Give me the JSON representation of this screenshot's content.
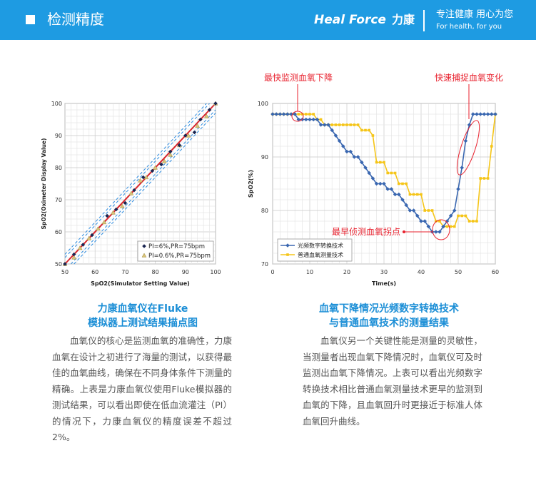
{
  "header": {
    "title": "检测精度",
    "brand": "Heal Force",
    "brand_cn": "力康",
    "slogan": "专注健康 用心为您",
    "slogan_en": "For health, for you"
  },
  "colors": {
    "header_bg": "#1e9be2",
    "caption": "#1b8ed6",
    "callout": "#e8212e",
    "series_blue": "#3a67b0",
    "series_yellow": "#f5c518",
    "identity_line": "#d8262e",
    "band_line": "#2f8de0"
  },
  "chart_data": [
    {
      "type": "scatter",
      "title": "",
      "xlabel": "SpO2(Simulator Setting Value)",
      "ylabel": "SpO2(Oximeter Display Value)",
      "xlim": [
        50,
        100
      ],
      "ylim": [
        50,
        100
      ],
      "xticks": [
        "50",
        "60",
        "70",
        "80",
        "90",
        "100"
      ],
      "yticks": [
        "50",
        "60",
        "70",
        "80",
        "90",
        "100"
      ],
      "grid": true,
      "legend_position": "bottom-right",
      "series": [
        {
          "name": "PI=6%,PR=75bpm",
          "marker": "diamond",
          "x": [
            50,
            53,
            56,
            59,
            64,
            67,
            70,
            73,
            76,
            79,
            82,
            85,
            88,
            90,
            93,
            95,
            98,
            100
          ],
          "y": [
            50,
            53,
            56,
            59,
            65,
            67,
            69,
            73,
            77,
            79,
            81,
            85,
            87,
            90,
            91,
            95,
            98,
            100
          ]
        },
        {
          "name": "PI=0.6%,PR=75bpm",
          "marker": "triangle",
          "x": [
            50,
            53,
            55,
            58,
            61,
            63,
            66,
            69,
            72,
            75,
            77,
            80,
            83,
            85,
            88,
            91,
            94,
            97,
            100
          ],
          "y": [
            50,
            52,
            55,
            58,
            61,
            63,
            66,
            68,
            72,
            76,
            77,
            80,
            82,
            84,
            87,
            90,
            93,
            96,
            100
          ]
        }
      ],
      "reference_lines": {
        "identity": "y=x",
        "bands": [
          "y=x+2",
          "y=x-2",
          "y=x+3",
          "y=x-3"
        ]
      }
    },
    {
      "type": "line",
      "title": "",
      "xlabel": "Time(s)",
      "ylabel": "SpO2(%)",
      "xlim": [
        0,
        60
      ],
      "ylim": [
        70,
        100
      ],
      "xticks": [
        "0",
        "10",
        "20",
        "30",
        "40",
        "50",
        "60"
      ],
      "yticks": [
        "70",
        "80",
        "90",
        "100"
      ],
      "grid": true,
      "legend_position": "bottom-left",
      "series": [
        {
          "name": "光频数字转换技术",
          "marker": "diamond",
          "x": [
            0,
            1,
            2,
            3,
            4,
            5,
            6,
            7,
            8,
            9,
            10,
            11,
            12,
            13,
            14,
            15,
            16,
            17,
            18,
            19,
            20,
            21,
            22,
            23,
            24,
            25,
            26,
            27,
            28,
            29,
            30,
            31,
            32,
            33,
            34,
            35,
            36,
            37,
            38,
            39,
            40,
            41,
            42,
            43,
            44,
            45,
            46,
            47,
            48,
            49,
            50,
            51,
            52,
            53,
            54,
            55,
            56,
            57,
            58,
            59,
            60
          ],
          "y": [
            98,
            98,
            98,
            98,
            98,
            98,
            98,
            97,
            97,
            97,
            97,
            97,
            97,
            96,
            96,
            96,
            95,
            94,
            93,
            92,
            91,
            91,
            90,
            90,
            89,
            88,
            87,
            86,
            85,
            85,
            85,
            84,
            84,
            83,
            83,
            82,
            81,
            80,
            80,
            79,
            78,
            78,
            77,
            76,
            76,
            76,
            77,
            78,
            79,
            80,
            84,
            88,
            93,
            96,
            98,
            98,
            98,
            98,
            98,
            98,
            98
          ]
        },
        {
          "name": "普通血氧测量技术",
          "marker": "square",
          "x": [
            0,
            1,
            2,
            3,
            4,
            5,
            6,
            7,
            8,
            9,
            10,
            11,
            12,
            13,
            14,
            15,
            16,
            17,
            18,
            19,
            20,
            21,
            22,
            23,
            24,
            25,
            26,
            27,
            28,
            29,
            30,
            31,
            32,
            33,
            34,
            35,
            36,
            37,
            38,
            39,
            40,
            41,
            42,
            43,
            44,
            45,
            46,
            47,
            48,
            49,
            50,
            51,
            52,
            53,
            54,
            55,
            56,
            57,
            58,
            59,
            60
          ],
          "y": [
            98,
            98,
            98,
            98,
            98,
            98,
            98,
            98,
            98,
            98,
            98,
            98,
            97,
            97,
            96,
            96,
            96,
            96,
            96,
            96,
            96,
            96,
            96,
            96,
            95,
            95,
            95,
            94,
            89,
            89,
            89,
            87,
            87,
            87,
            85,
            85,
            85,
            83,
            83,
            83,
            83,
            80,
            80,
            80,
            78,
            78,
            77,
            77,
            77,
            77,
            79,
            79,
            79,
            78,
            78,
            78,
            86,
            86,
            86,
            92,
            98
          ]
        }
      ],
      "annotations": [
        "最快监测血氧下降",
        "快速捕捉血氧变化",
        "最早侦测血氧拐点"
      ]
    }
  ],
  "left": {
    "caption_line1": "力康血氧仪在Fluke",
    "caption_line2": "模拟器上测试结果描点图",
    "body": "血氧仪的核心是监测血氧的准确性，力康血氧在设计之初进行了海量的测试，以获得最佳的血氧曲线，确保在不同身体条件下测量的精确。上表是力康血氧仪使用Fluke模拟器的测试结果，可以看出即使在低血流灌注（PI）的情况下，力康血氧仪的精度误差不超过2%。"
  },
  "right": {
    "caption_line1": "血氧下降情况光频数字转换技术",
    "caption_line2": "与普通血氧技术的测量结果",
    "body": "血氧仪另一个关键性能是测量的灵敏性，当测量者出现血氧下降情况时，血氧仪可及时监测出血氧下降情况。上表可以看出光频数字转换技术相比普通血氧测量技术更早的监测到血氧的下降，且血氧回升时更接近于标准人体血氧回升曲线。"
  }
}
